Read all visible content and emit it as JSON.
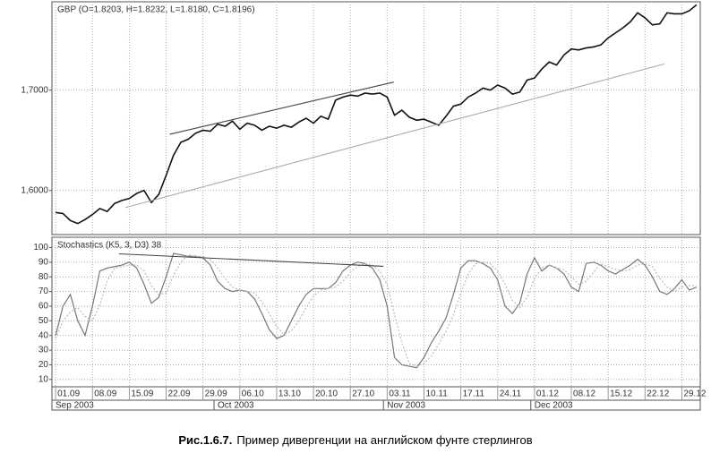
{
  "chart_data": [
    {
      "type": "line",
      "title": "GBP (O=1.8203, H=1.8232, L=1.8180, C=1.8196)",
      "ylim": [
        1.556,
        1.788
      ],
      "yticks": [
        {
          "value": 1.6,
          "label": "1,6000"
        },
        {
          "value": 1.7,
          "label": "1,7000"
        }
      ],
      "grid": true,
      "series": [
        {
          "color": "#111111",
          "values": [
            1.578,
            1.577,
            1.57,
            1.567,
            1.571,
            1.576,
            1.582,
            1.579,
            1.587,
            1.59,
            1.592,
            1.597,
            1.6,
            1.588,
            1.596,
            1.615,
            1.635,
            1.648,
            1.651,
            1.657,
            1.66,
            1.659,
            1.666,
            1.664,
            1.669,
            1.661,
            1.667,
            1.665,
            1.66,
            1.664,
            1.662,
            1.665,
            1.663,
            1.668,
            1.672,
            1.667,
            1.674,
            1.671,
            1.69,
            1.693,
            1.695,
            1.694,
            1.697,
            1.696,
            1.697,
            1.693,
            1.675,
            1.68,
            1.673,
            1.67,
            1.671,
            1.668,
            1.665,
            1.674,
            1.684,
            1.686,
            1.693,
            1.697,
            1.702,
            1.7,
            1.705,
            1.702,
            1.696,
            1.698,
            1.71,
            1.712,
            1.721,
            1.728,
            1.725,
            1.735,
            1.741,
            1.74,
            1.742,
            1.743,
            1.745,
            1.752,
            1.757,
            1.762,
            1.768,
            1.777,
            1.772,
            1.765,
            1.766,
            1.777,
            1.776,
            1.776,
            1.779,
            1.785
          ]
        }
      ],
      "trendlines": [
        {
          "color": "#444444",
          "x": [
            15.5,
            45.9
          ],
          "values": [
            1.656,
            1.708
          ]
        },
        {
          "color": "#aaaaaa",
          "x": [
            9.5,
            82.6
          ],
          "values": [
            1.583,
            1.726
          ]
        }
      ]
    },
    {
      "type": "line",
      "title": "Stochastics (K5, 3, D3) 38",
      "ylim": [
        5,
        107
      ],
      "yticks": [
        10,
        20,
        30,
        40,
        50,
        60,
        70,
        80,
        90,
        100
      ],
      "grid": true,
      "categories": [
        "01.09",
        null,
        null,
        null,
        null,
        "08.09",
        null,
        null,
        null,
        null,
        "15.09",
        null,
        null,
        null,
        null,
        "22.09",
        null,
        null,
        null,
        null,
        "29.09",
        null,
        null,
        null,
        null,
        "06.10",
        null,
        null,
        null,
        null,
        "13.10",
        null,
        null,
        null,
        null,
        "20.10",
        null,
        null,
        null,
        null,
        "27.10",
        null,
        null,
        null,
        null,
        "03.11",
        null,
        null,
        null,
        null,
        "10.11",
        null,
        null,
        null,
        null,
        "17.11",
        null,
        null,
        null,
        null,
        "24.11",
        null,
        null,
        null,
        null,
        "01.12",
        null,
        null,
        null,
        null,
        "08.12",
        null,
        null,
        null,
        null,
        "15.12",
        null,
        null,
        null,
        null,
        "22.12",
        null,
        null,
        null,
        null,
        "29.12",
        null,
        null
      ],
      "months": [
        {
          "label": "Sep 2003",
          "start": 0,
          "end": 21
        },
        {
          "label": "Oct 2003",
          "start": 22,
          "end": 44
        },
        {
          "label": "Nov 2003",
          "start": 45,
          "end": 64
        },
        {
          "label": "Dec 2003",
          "start": 65,
          "end": 87
        }
      ],
      "series": [
        {
          "color": "#777777",
          "values": [
            40,
            60,
            68,
            50,
            40,
            60,
            84,
            86,
            87,
            88,
            90,
            86,
            75,
            62,
            66,
            80,
            96,
            95,
            94,
            94,
            93,
            88,
            77,
            72,
            70,
            71,
            70,
            65,
            55,
            44,
            38,
            40,
            50,
            60,
            68,
            72,
            72,
            72,
            76,
            84,
            88,
            90,
            89,
            86,
            78,
            60,
            25,
            20,
            19,
            18,
            25,
            35,
            43,
            52,
            68,
            86,
            91,
            91,
            89,
            86,
            78,
            60,
            55,
            62,
            82,
            93,
            84,
            88,
            86,
            82,
            73,
            70,
            89,
            90,
            88,
            84,
            82,
            85,
            88,
            92,
            88,
            80,
            70,
            68,
            72,
            78,
            71,
            73
          ]
        },
        {
          "color": "#bbbbbb",
          "dashed": true,
          "values": [
            38,
            50,
            56,
            59,
            53,
            50,
            61,
            77,
            86,
            87,
            88,
            88,
            84,
            74,
            68,
            69,
            81,
            90,
            95,
            94,
            94,
            92,
            86,
            79,
            73,
            71,
            70,
            69,
            63,
            55,
            46,
            41,
            43,
            50,
            59,
            67,
            71,
            72,
            73,
            77,
            83,
            87,
            89,
            88,
            84,
            75,
            54,
            35,
            21,
            19,
            21,
            26,
            34,
            43,
            54,
            69,
            82,
            89,
            90,
            89,
            84,
            75,
            64,
            59,
            66,
            79,
            86,
            88,
            86,
            85,
            80,
            75,
            77,
            83,
            89,
            87,
            85,
            84,
            85,
            88,
            89,
            87,
            79,
            73,
            70,
            73,
            74,
            74
          ]
        }
      ],
      "trendlines": [
        {
          "color": "#444444",
          "x": [
            8.6,
            44.5
          ],
          "values": [
            95.7,
            87.2
          ]
        }
      ]
    }
  ],
  "caption": {
    "figure": "Рис.1.6.7.",
    "text": "Пример дивергенции на английском фунте стерлингов"
  }
}
